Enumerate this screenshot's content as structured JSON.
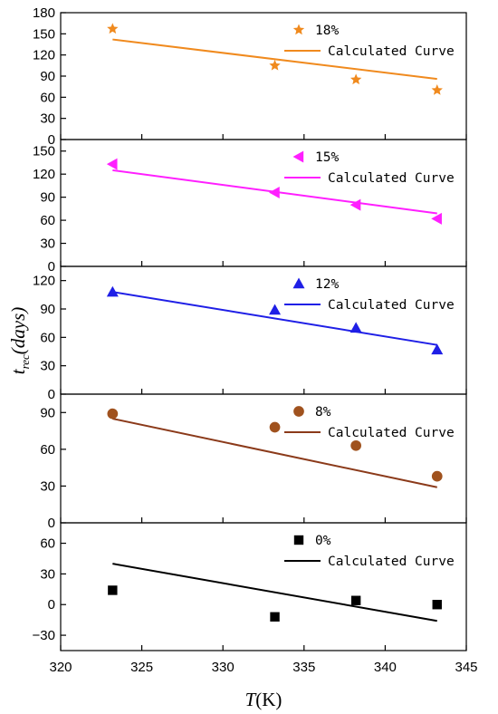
{
  "chart_data": {
    "type": "scatter",
    "xlabel": {
      "italic": "T",
      "plain": "(K)"
    },
    "ylabel": {
      "base": "t",
      "sub": "rec",
      "rest": "(days)"
    },
    "xlim": [
      320,
      345
    ],
    "xticks": [
      320,
      325,
      330,
      335,
      340,
      345
    ],
    "panels": [
      {
        "name": "18%",
        "fit_label": "Calculated Curve",
        "marker": "star",
        "color": "#f08a1e",
        "ylim": [
          0,
          180
        ],
        "yticks": [
          0,
          30,
          60,
          90,
          120,
          150,
          180
        ],
        "points": [
          [
            323.2,
            157
          ],
          [
            333.2,
            105
          ],
          [
            338.2,
            85
          ],
          [
            343.2,
            70
          ]
        ],
        "fit": [
          [
            323.2,
            142
          ],
          [
            343.2,
            86
          ]
        ]
      },
      {
        "name": "15%",
        "fit_label": "Calculated Curve",
        "marker": "triangle-left",
        "color": "#ff1fff",
        "ylim": [
          0,
          165
        ],
        "yticks": [
          0,
          30,
          60,
          90,
          120,
          150
        ],
        "points": [
          [
            323.2,
            133
          ],
          [
            333.2,
            96
          ],
          [
            338.2,
            80
          ],
          [
            343.2,
            62
          ]
        ],
        "fit": [
          [
            323.2,
            125
          ],
          [
            343.2,
            69
          ]
        ]
      },
      {
        "name": "12%",
        "fit_label": "Calculated Curve",
        "marker": "triangle-up",
        "color": "#1f1fe6",
        "ylim": [
          0,
          135
        ],
        "yticks": [
          0,
          30,
          60,
          90,
          120
        ],
        "points": [
          [
            323.2,
            108
          ],
          [
            333.2,
            89
          ],
          [
            338.2,
            70
          ],
          [
            343.2,
            47
          ]
        ],
        "fit": [
          [
            323.2,
            108
          ],
          [
            343.2,
            52
          ]
        ]
      },
      {
        "name": "8%",
        "fit_label": "Calculated Curve",
        "marker": "circle",
        "color": "#a0521e",
        "line_color": "#8b3a1a",
        "ylim": [
          0,
          105
        ],
        "yticks": [
          0,
          30,
          60,
          90
        ],
        "points": [
          [
            323.2,
            89
          ],
          [
            333.2,
            78
          ],
          [
            338.2,
            63
          ],
          [
            343.2,
            38
          ]
        ],
        "fit": [
          [
            323.2,
            85
          ],
          [
            343.2,
            29
          ]
        ]
      },
      {
        "name": "0%",
        "fit_label": "Calculated Curve",
        "marker": "square",
        "color": "#000000",
        "ylim": [
          -45,
          80
        ],
        "yticks": [
          -30,
          0,
          30,
          60
        ],
        "points": [
          [
            323.2,
            14
          ],
          [
            333.2,
            -12
          ],
          [
            338.2,
            4
          ],
          [
            343.2,
            0
          ]
        ],
        "fit": [
          [
            323.2,
            40
          ],
          [
            343.2,
            -16
          ]
        ]
      }
    ]
  }
}
